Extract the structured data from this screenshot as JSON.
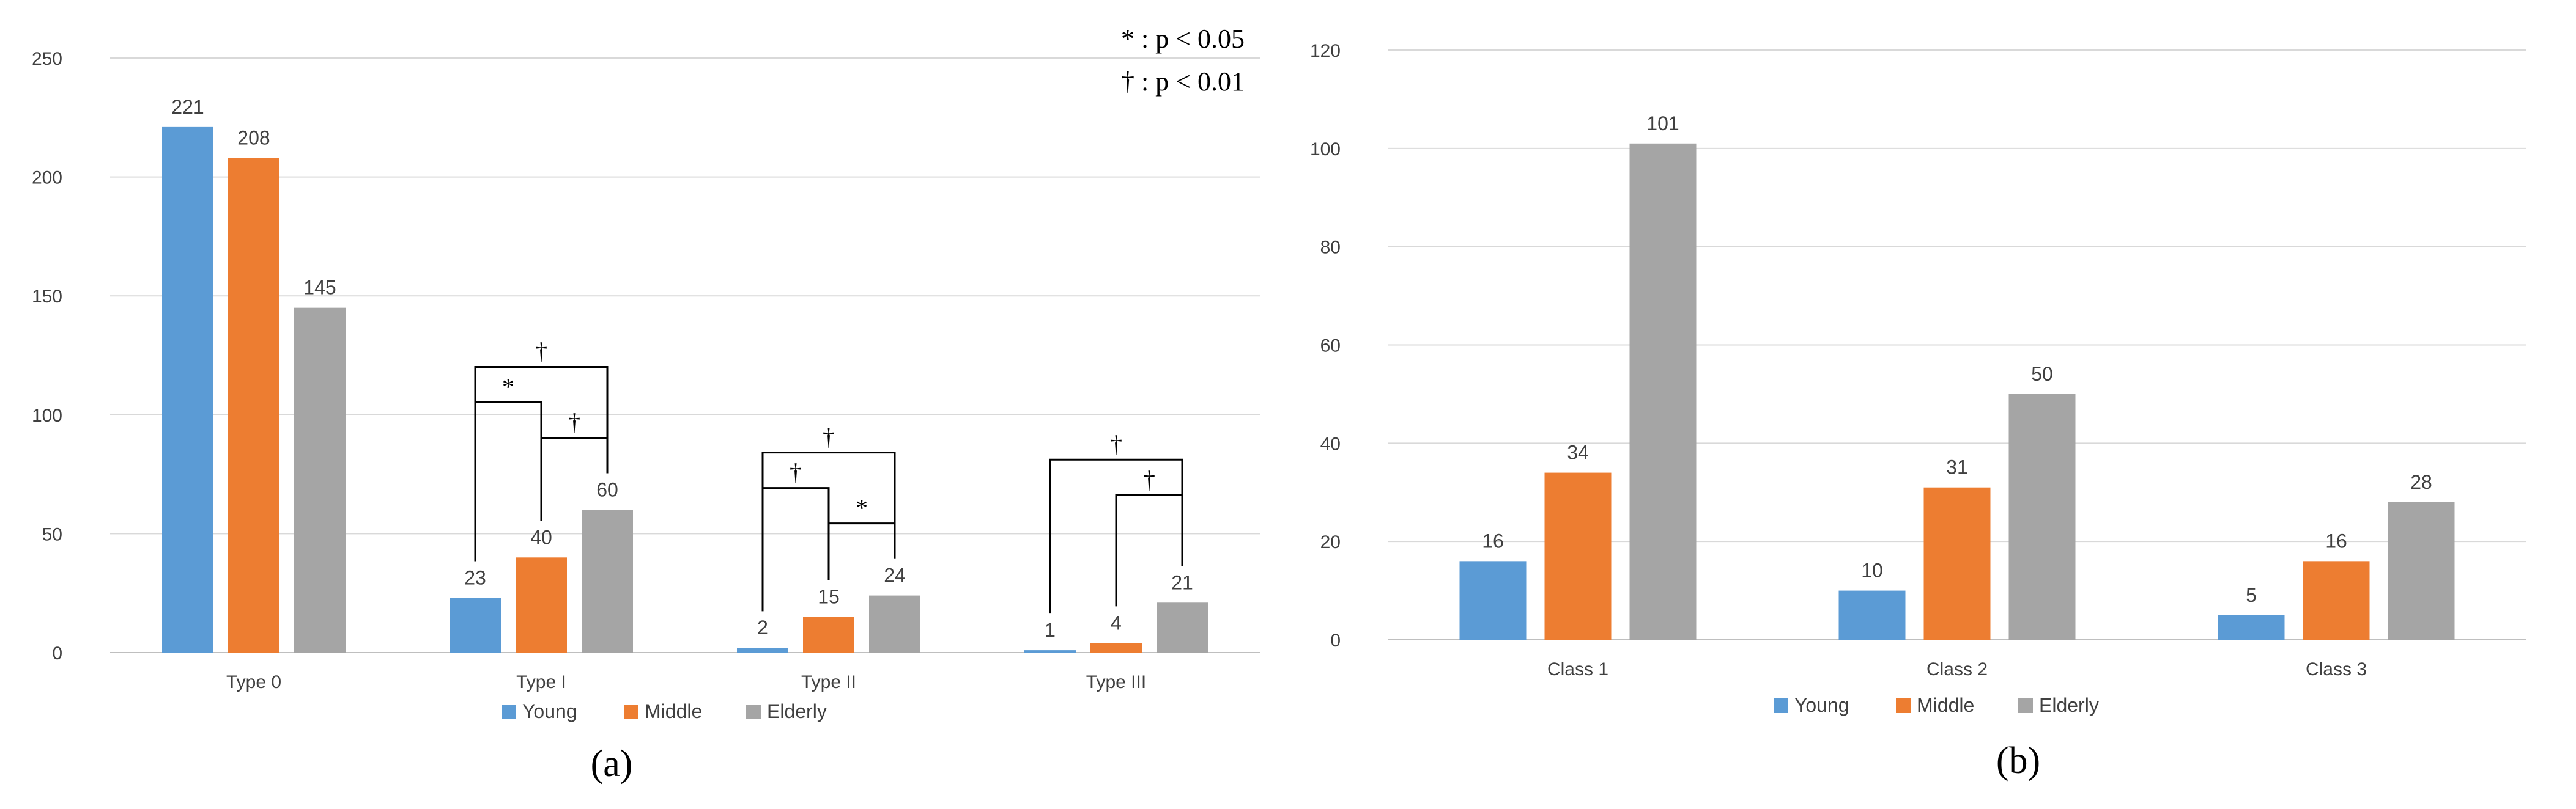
{
  "colors": {
    "young": "#5B9BD5",
    "middle": "#ED7D31",
    "elderly": "#A5A5A5",
    "grid": "#D9D9D9",
    "text": "#404040"
  },
  "significance_notes": {
    "star": "* : p < 0.05",
    "dagger": "† : p < 0.01"
  },
  "chart_data": [
    {
      "id": "a",
      "type": "bar",
      "panel_label": "(a)",
      "categories": [
        "Type 0",
        "Type I",
        "Type II",
        "Type III"
      ],
      "series": [
        {
          "name": "Young",
          "values": [
            221,
            23,
            2,
            1
          ]
        },
        {
          "name": "Middle",
          "values": [
            208,
            40,
            15,
            4
          ]
        },
        {
          "name": "Elderly",
          "values": [
            145,
            60,
            24,
            21
          ]
        }
      ],
      "ylim": [
        0,
        250
      ],
      "yticks": [
        0,
        50,
        100,
        150,
        200,
        250
      ],
      "grid": true,
      "legend": "bottom-center",
      "significance": [
        {
          "category": 1,
          "from": 0,
          "to": 2,
          "symbol": "†",
          "level": 3
        },
        {
          "category": 1,
          "from": 0,
          "to": 1,
          "symbol": "*",
          "level": 2
        },
        {
          "category": 1,
          "from": 1,
          "to": 2,
          "symbol": "†",
          "level": 1
        },
        {
          "category": 2,
          "from": 0,
          "to": 2,
          "symbol": "†",
          "level": 3
        },
        {
          "category": 2,
          "from": 0,
          "to": 1,
          "symbol": "†",
          "level": 2
        },
        {
          "category": 2,
          "from": 1,
          "to": 2,
          "symbol": "*",
          "level": 1
        },
        {
          "category": 3,
          "from": 0,
          "to": 2,
          "symbol": "†",
          "level": 3
        },
        {
          "category": 3,
          "from": 1,
          "to": 2,
          "symbol": "†",
          "level": 2
        }
      ]
    },
    {
      "id": "b",
      "type": "bar",
      "panel_label": "(b)",
      "categories": [
        "Class 1",
        "Class 2",
        "Class 3"
      ],
      "series": [
        {
          "name": "Young",
          "values": [
            16,
            10,
            5
          ]
        },
        {
          "name": "Middle",
          "values": [
            34,
            31,
            16
          ]
        },
        {
          "name": "Elderly",
          "values": [
            101,
            50,
            28
          ]
        }
      ],
      "ylim": [
        0,
        120
      ],
      "yticks": [
        0,
        20,
        40,
        60,
        80,
        100,
        120
      ],
      "grid": true,
      "legend": "bottom-center"
    }
  ]
}
